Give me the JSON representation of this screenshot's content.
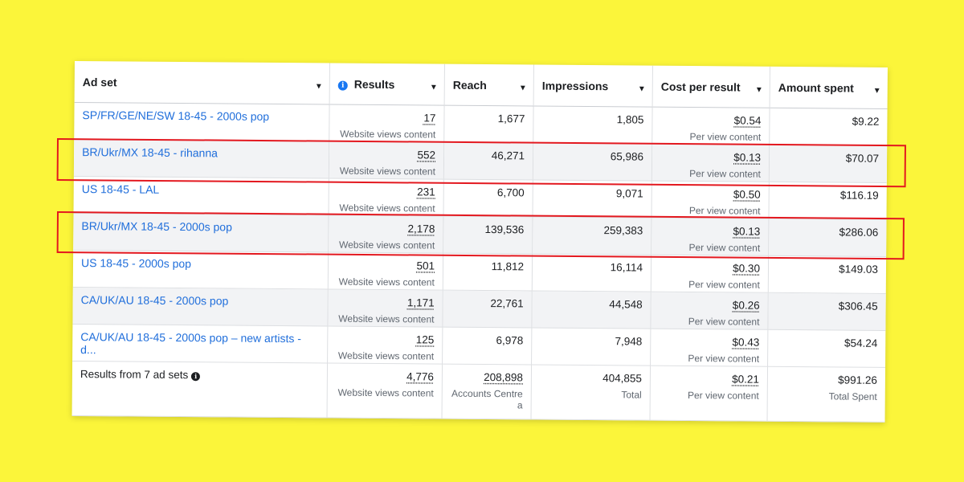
{
  "headers": {
    "ad_set": "Ad set",
    "results": "Results",
    "reach": "Reach",
    "impressions": "Impressions",
    "cost": "Cost per result",
    "spent": "Amount spent"
  },
  "rows": [
    {
      "name": "SP/FR/GE/NE/SW 18-45 - 2000s pop",
      "results": "17",
      "results_sub": "Website views content",
      "reach": "1,677",
      "impressions": "1,805",
      "cost": "$0.54",
      "cost_sub": "Per view content",
      "spent": "$9.22"
    },
    {
      "name": "BR/Ukr/MX 18-45 - rihanna",
      "results": "552",
      "results_sub": "Website views content",
      "reach": "46,271",
      "impressions": "65,986",
      "cost": "$0.13",
      "cost_sub": "Per view content",
      "spent": "$70.07"
    },
    {
      "name": "US 18-45 - LAL",
      "results": "231",
      "results_sub": "Website views content",
      "reach": "6,700",
      "impressions": "9,071",
      "cost": "$0.50",
      "cost_sub": "Per view content",
      "spent": "$116.19"
    },
    {
      "name": "BR/Ukr/MX 18-45 - 2000s pop",
      "results": "2,178",
      "results_sub": "Website views content",
      "reach": "139,536",
      "impressions": "259,383",
      "cost": "$0.13",
      "cost_sub": "Per view content",
      "spent": "$286.06"
    },
    {
      "name": "US 18-45 - 2000s pop",
      "results": "501",
      "results_sub": "Website views content",
      "reach": "11,812",
      "impressions": "16,114",
      "cost": "$0.30",
      "cost_sub": "Per view content",
      "spent": "$149.03"
    },
    {
      "name": "CA/UK/AU 18-45 - 2000s pop",
      "results": "1,171",
      "results_sub": "Website views content",
      "reach": "22,761",
      "impressions": "44,548",
      "cost": "$0.26",
      "cost_sub": "Per view content",
      "spent": "$306.45"
    },
    {
      "name": "CA/UK/AU 18-45 - 2000s pop – new artists - d...",
      "results": "125",
      "results_sub": "Website views content",
      "reach": "6,978",
      "impressions": "7,948",
      "cost": "$0.43",
      "cost_sub": "Per view content",
      "spent": "$54.24"
    }
  ],
  "footer": {
    "label": "Results from 7 ad sets",
    "results": "4,776",
    "results_sub": "Website views content",
    "reach": "208,898",
    "reach_sub": "Accounts Centre a",
    "impressions": "404,855",
    "impressions_sub": "Total",
    "cost": "$0.21",
    "cost_sub": "Per view content",
    "spent": "$991.26",
    "spent_sub": "Total Spent"
  },
  "icons": {
    "info": "info-circle-icon",
    "sort": "sort-caret-icon"
  },
  "colors": {
    "background": "#fbf53a",
    "link": "#216fdb",
    "highlight": "#e3181f",
    "info_icon": "#1877f2"
  }
}
